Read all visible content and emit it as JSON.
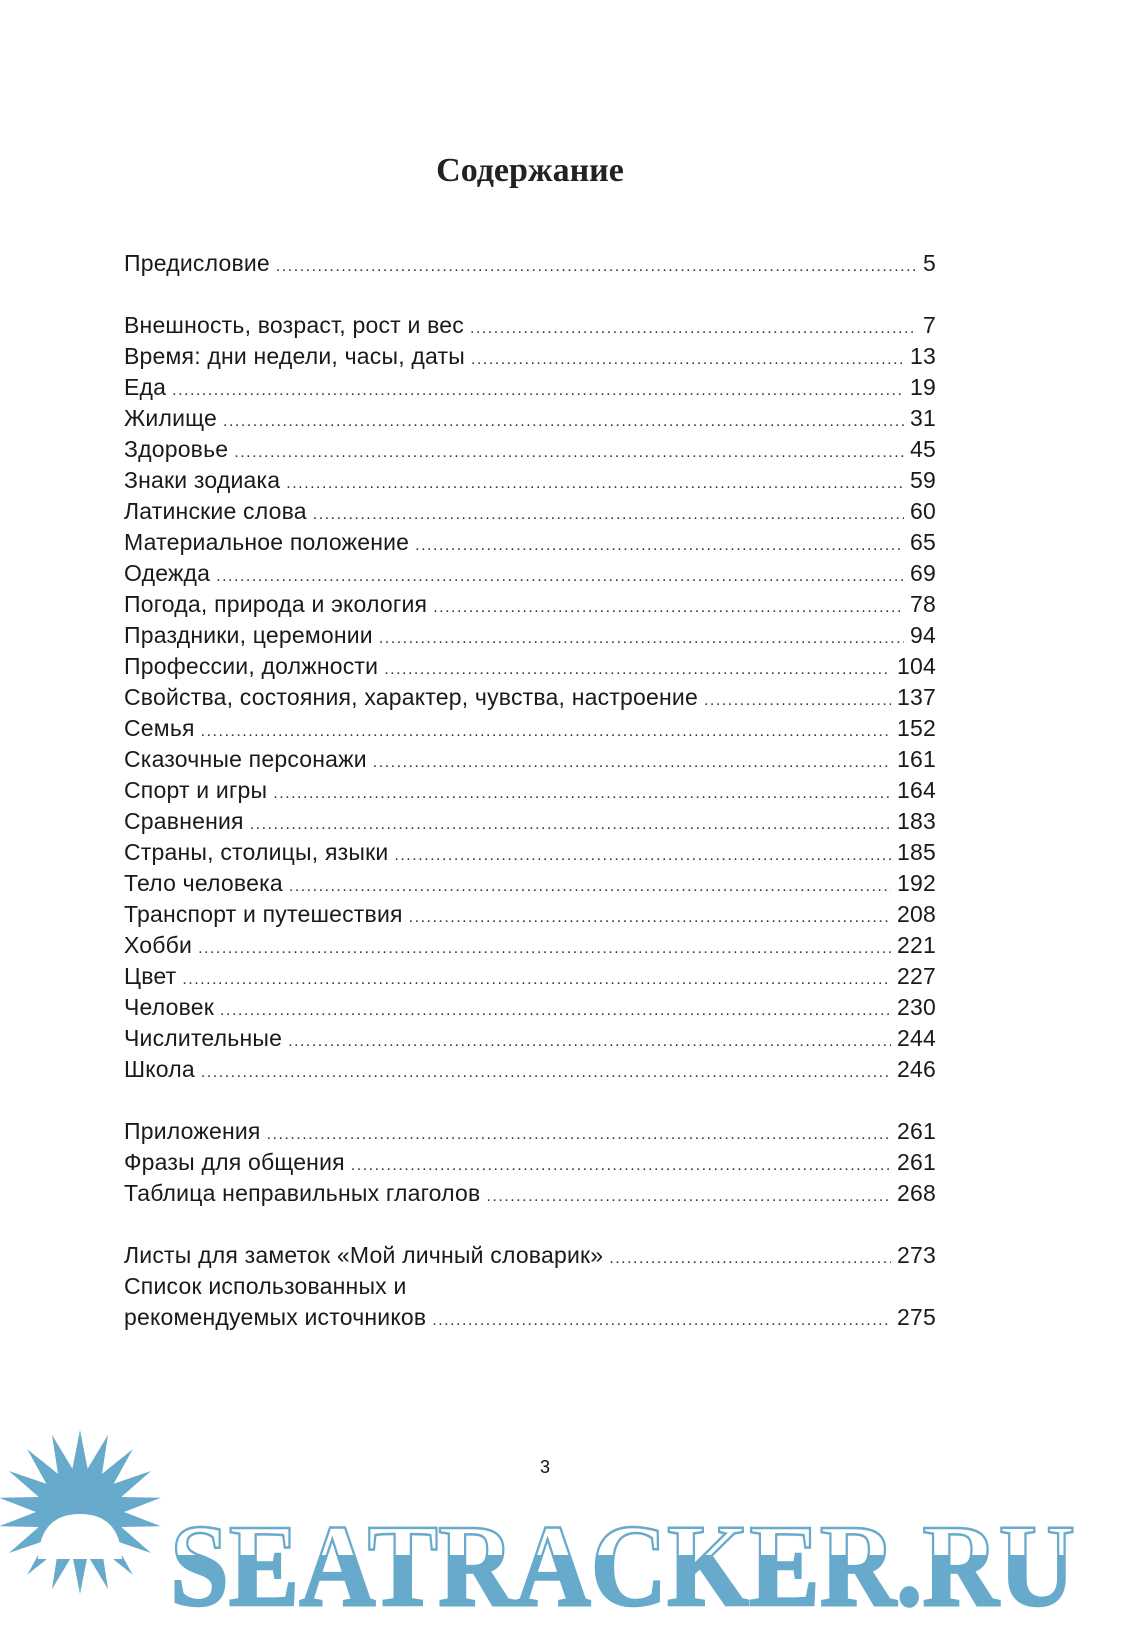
{
  "title": "Содержание",
  "groups": [
    {
      "entries": [
        {
          "label": "Предисловие",
          "page": "5"
        }
      ]
    },
    {
      "entries": [
        {
          "label": "Внешность, возраст, рост и вес",
          "page": "7"
        },
        {
          "label": "Время: дни недели, часы, даты",
          "page": "13"
        },
        {
          "label": "Еда",
          "page": "19"
        },
        {
          "label": "Жилище",
          "page": "31"
        },
        {
          "label": "Здоровье",
          "page": "45"
        },
        {
          "label": "Знаки зодиака",
          "page": "59"
        },
        {
          "label": "Латинские слова",
          "page": "60"
        },
        {
          "label": "Материальное положение",
          "page": "65"
        },
        {
          "label": "Одежда",
          "page": "69"
        },
        {
          "label": "Погода, природа и экология",
          "page": "78"
        },
        {
          "label": "Праздники, церемонии",
          "page": "94"
        },
        {
          "label": "Профессии, должности",
          "page": "104"
        },
        {
          "label": "Свойства, состояния, характер, чувства, настроение",
          "page": "137"
        },
        {
          "label": "Семья",
          "page": "152"
        },
        {
          "label": "Сказочные персонажи",
          "page": "161"
        },
        {
          "label": "Спорт и игры",
          "page": "164"
        },
        {
          "label": "Сравнения",
          "page": "183"
        },
        {
          "label": "Страны, столицы, языки",
          "page": "185"
        },
        {
          "label": "Тело человека",
          "page": "192"
        },
        {
          "label": "Транспорт и путешествия",
          "page": "208"
        },
        {
          "label": "Хобби",
          "page": "221"
        },
        {
          "label": "Цвет",
          "page": "227"
        },
        {
          "label": "Человек",
          "page": "230"
        },
        {
          "label": "Числительные",
          "page": "244"
        },
        {
          "label": "Школа",
          "page": "246"
        }
      ]
    },
    {
      "entries": [
        {
          "label": "Приложения",
          "page": "261"
        },
        {
          "label": "Фразы для общения",
          "page": "261"
        },
        {
          "label": "Таблица неправильных глаголов",
          "page": "268"
        }
      ]
    },
    {
      "entries": [
        {
          "label": "Листы для заметок «Мой личный словарик»",
          "page": "273"
        },
        {
          "label_line1": "Список использованных и",
          "label": "рекомендуемых источников",
          "page": "275"
        }
      ]
    }
  ],
  "page_number": "3",
  "watermark": {
    "text": "SEATRACKER.RU",
    "color": "#67aacb"
  }
}
